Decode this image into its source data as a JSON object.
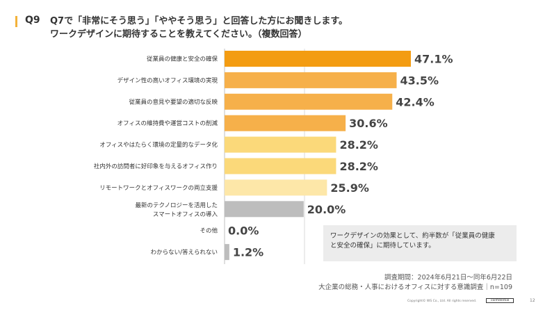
{
  "question": {
    "number": "Q9",
    "title_line1": "Q7で「非常にそう思う」「ややそう思う」と回答した方にお聞きします。",
    "title_line2": "ワークデザインに期待することを教えてください。（複数回答）"
  },
  "chart_data": {
    "type": "bar",
    "orientation": "horizontal",
    "title": "ワークデザインに期待することを教えてください。（複数回答）",
    "unit": "%",
    "categories": [
      [
        "従業員の健康と安全の確保"
      ],
      [
        "デザイン性の高いオフィス環境の実現"
      ],
      [
        "従業員の意見や要望の適切な反映"
      ],
      [
        "オフィスの維持費や運営コストの削減"
      ],
      [
        "オフィスやはたらく環境の定量的なデータ化"
      ],
      [
        "社内外の訪問者に好印象を与えるオフィス作り"
      ],
      [
        "リモートワークとオフィスワークの両立支援"
      ],
      [
        "最新のテクノロジーを活用した",
        "スマートオフィスの導入"
      ],
      [
        "その他"
      ],
      [
        "わからない/答えられない"
      ]
    ],
    "values": [
      47.1,
      43.5,
      42.4,
      30.6,
      28.2,
      28.2,
      25.9,
      20.0,
      0.0,
      1.2
    ],
    "value_labels": [
      "47.1%",
      "43.5%",
      "42.4%",
      "30.6%",
      "28.2%",
      "28.2%",
      "25.9%",
      "20.0%",
      "0.0%",
      "1.2%"
    ],
    "colors": [
      "#f39c12",
      "#f6b04a",
      "#f6b04a",
      "#f6b04a",
      "#fbd97a",
      "#fbd97a",
      "#fde7a8",
      "#bdbdbd",
      "#bdbdbd",
      "#bdbdbd"
    ],
    "xlim": [
      0,
      50
    ]
  },
  "callout": {
    "line1": "ワークデザインの効果として、約半数が「従業員の健康",
    "line2": "と安全の確保」に期待しています。"
  },
  "footer": {
    "period": "調査期間：2024年6月21日〜同年6月22日",
    "survey": "大企業の総務・人事におけるオフィスに対する意識調査｜n=109"
  },
  "meta": {
    "copyright": "Copyright© WS Co., Ltd. All rights reserved.",
    "confidential": "confidential",
    "page": "12"
  }
}
